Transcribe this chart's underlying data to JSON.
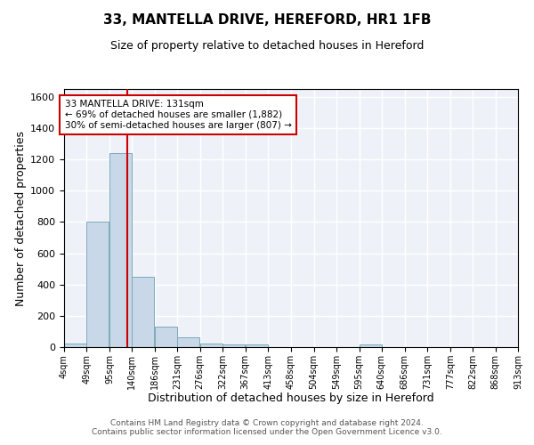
{
  "title_line1": "33, MANTELLA DRIVE, HEREFORD, HR1 1FB",
  "title_line2": "Size of property relative to detached houses in Hereford",
  "xlabel": "Distribution of detached houses by size in Hereford",
  "ylabel": "Number of detached properties",
  "bar_color": "#c8d8e8",
  "bar_edge_color": "#7aaabb",
  "background_color": "#eef2f8",
  "grid_color": "#ffffff",
  "annotation_box_color": "#cc0000",
  "vline_color": "#cc0000",
  "bins": [
    4,
    49,
    95,
    140,
    186,
    231,
    276,
    322,
    367,
    413,
    458,
    504,
    549,
    595,
    640,
    686,
    731,
    777,
    822,
    868,
    913
  ],
  "counts": [
    25,
    800,
    1240,
    450,
    130,
    65,
    25,
    15,
    15,
    0,
    0,
    0,
    0,
    15,
    0,
    0,
    0,
    0,
    0,
    0
  ],
  "property_size": 131,
  "annotation_text": "33 MANTELLA DRIVE: 131sqm\n← 69% of detached houses are smaller (1,882)\n30% of semi-detached houses are larger (807) →",
  "ylim": [
    0,
    1650
  ],
  "yticks": [
    0,
    200,
    400,
    600,
    800,
    1000,
    1200,
    1400,
    1600
  ],
  "footer_text": "Contains HM Land Registry data © Crown copyright and database right 2024.\nContains public sector information licensed under the Open Government Licence v3.0.",
  "tick_labels": [
    "4sqm",
    "49sqm",
    "95sqm",
    "140sqm",
    "186sqm",
    "231sqm",
    "276sqm",
    "322sqm",
    "367sqm",
    "413sqm",
    "458sqm",
    "504sqm",
    "549sqm",
    "595sqm",
    "640sqm",
    "686sqm",
    "731sqm",
    "777sqm",
    "822sqm",
    "868sqm",
    "913sqm"
  ],
  "title1_fontsize": 11,
  "title2_fontsize": 9,
  "xlabel_fontsize": 9,
  "ylabel_fontsize": 9,
  "xtick_fontsize": 7,
  "ytick_fontsize": 8,
  "annotation_fontsize": 7.5,
  "footer_fontsize": 6.5
}
